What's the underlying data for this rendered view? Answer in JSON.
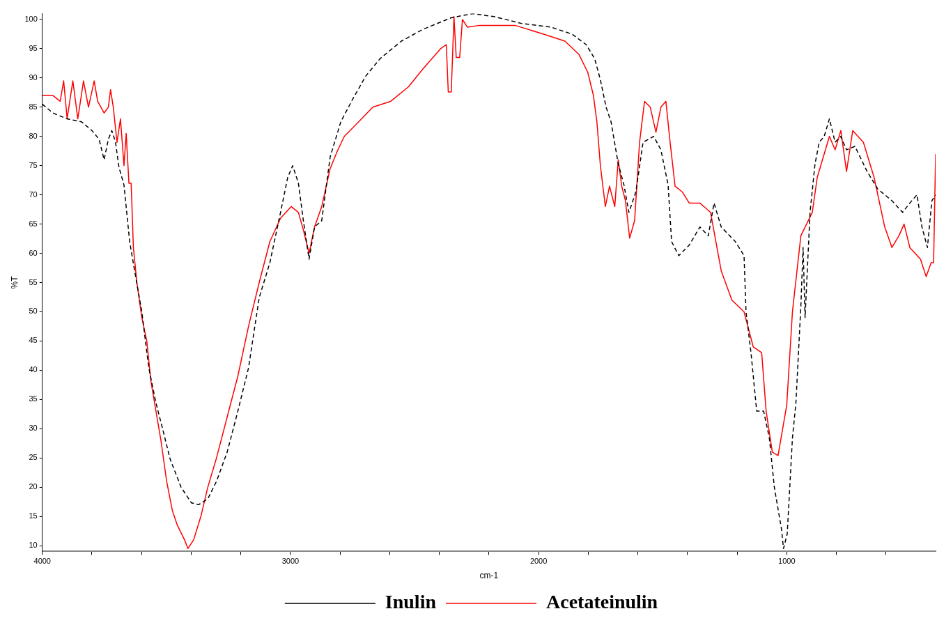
{
  "chart_data": {
    "type": "line",
    "xlabel": "cm-1",
    "ylabel": "%T",
    "xlim": [
      4000,
      400
    ],
    "ylim": [
      9,
      101
    ],
    "xticks": [
      4000,
      {
        "value": 3800,
        "label": null
      },
      {
        "value": 3600,
        "label": null
      },
      {
        "value": 3400,
        "label": null
      },
      {
        "value": 3200,
        "label": null
      },
      3000,
      {
        "value": 2800,
        "label": null
      },
      {
        "value": 2600,
        "label": null
      },
      {
        "value": 2400,
        "label": null
      },
      {
        "value": 2200,
        "label": null
      },
      2000,
      {
        "value": 1800,
        "label": null
      },
      {
        "value": 1600,
        "label": null
      },
      {
        "value": 1400,
        "label": null
      },
      {
        "value": 1200,
        "label": null
      },
      1000,
      {
        "value": 800,
        "label": null
      },
      {
        "value": 600,
        "label": null
      }
    ],
    "yticks": [
      10,
      15,
      20,
      25,
      30,
      35,
      40,
      45,
      50,
      55,
      60,
      65,
      70,
      75,
      80,
      85,
      90,
      95,
      100
    ],
    "grid": false,
    "legend": "bottom",
    "marker": "none",
    "series": [
      {
        "name": "Inulin",
        "color": "#000000",
        "line_style": "dashed",
        "x": [
          4000,
          3957,
          3900,
          3842,
          3800,
          3771,
          3751,
          3734,
          3720,
          3705,
          3691,
          3671,
          3648,
          3628,
          3599,
          3571,
          3542,
          3513,
          3485,
          3441,
          3399,
          3370,
          3333,
          3298,
          3255,
          3212,
          3169,
          3126,
          3083,
          3040,
          3011,
          2991,
          2968,
          2948,
          2925,
          2903,
          2874,
          2840,
          2797,
          2754,
          2697,
          2639,
          2553,
          2467,
          2352,
          2266,
          2180,
          2066,
          1951,
          1865,
          1808,
          1774,
          1751,
          1728,
          1708,
          1679,
          1656,
          1636,
          1608,
          1579,
          1536,
          1507,
          1478,
          1464,
          1435,
          1393,
          1350,
          1316,
          1293,
          1264,
          1207,
          1172,
          1164,
          1144,
          1121,
          1093,
          1070,
          1050,
          1021,
          1013,
          998,
          977,
          963,
          943,
          934,
          926,
          906,
          886,
          869,
          849,
          828,
          805,
          782,
          759,
          725,
          676,
          633,
          576,
          533,
          504,
          475,
          455,
          433,
          415,
          400
        ],
        "values": [
          85.5,
          84,
          83,
          82.5,
          81,
          79.5,
          76,
          79.5,
          81,
          79,
          74.7,
          71.7,
          62,
          57,
          50,
          40.4,
          34.4,
          29.6,
          24.8,
          20,
          17.3,
          17,
          18,
          21,
          26,
          33,
          40.4,
          52.4,
          58.4,
          67,
          73,
          75,
          72,
          65.6,
          59,
          64.5,
          65.6,
          76.5,
          82.5,
          86,
          90.3,
          93.3,
          96.3,
          98.3,
          100.3,
          101,
          100.5,
          99.3,
          98.7,
          97.5,
          95.7,
          93.3,
          89.7,
          85,
          82.5,
          75.3,
          71.7,
          67,
          70.5,
          79,
          80,
          77.7,
          71.7,
          62,
          59.6,
          61.4,
          64.5,
          63,
          68.6,
          64.5,
          62,
          59.6,
          50,
          43,
          33,
          33,
          28.4,
          20,
          12.8,
          9.5,
          12,
          28.4,
          34.4,
          51,
          61,
          49,
          67,
          75.3,
          79,
          80,
          83,
          79,
          80,
          77.7,
          78.3,
          74,
          71,
          69,
          67,
          68.6,
          70,
          64.5,
          61,
          69,
          70
        ]
      },
      {
        "name": "Acetateinulin",
        "color": "#ff0000",
        "line_style": "solid",
        "x": [
          4000,
          3957,
          3928,
          3914,
          3900,
          3877,
          3857,
          3834,
          3814,
          3791,
          3777,
          3751,
          3734,
          3725,
          3714,
          3699,
          3685,
          3671,
          3662,
          3651,
          3642,
          3633,
          3619,
          3599,
          3579,
          3562,
          3542,
          3522,
          3499,
          3476,
          3456,
          3427,
          3413,
          3390,
          3361,
          3333,
          3298,
          3255,
          3212,
          3169,
          3126,
          3083,
          3040,
          2997,
          2968,
          2948,
          2925,
          2903,
          2874,
          2840,
          2811,
          2783,
          2725,
          2668,
          2596,
          2524,
          2467,
          2395,
          2372,
          2364,
          2352,
          2341,
          2332,
          2318,
          2307,
          2287,
          2238,
          2095,
          1980,
          1894,
          1837,
          1802,
          1779,
          1765,
          1751,
          1731,
          1714,
          1693,
          1679,
          1665,
          1650,
          1633,
          1613,
          1593,
          1573,
          1550,
          1527,
          1507,
          1487,
          1470,
          1450,
          1421,
          1393,
          1350,
          1307,
          1264,
          1221,
          1172,
          1135,
          1101,
          1083,
          1058,
          1035,
          1000,
          977,
          943,
          897,
          877,
          828,
          805,
          782,
          759,
          734,
          691,
          648,
          605,
          576,
          548,
          527,
          504,
          461,
          438,
          418,
          408,
          400
        ],
        "values": [
          87,
          87,
          86,
          89.5,
          83,
          89.5,
          83,
          89.5,
          85,
          89.5,
          86,
          84,
          85,
          88,
          85,
          79,
          83,
          75,
          80.5,
          72,
          72,
          61,
          55,
          49,
          45,
          38,
          33,
          28,
          21,
          16,
          13.5,
          11,
          9.5,
          11,
          15,
          20,
          25,
          32,
          39,
          47.5,
          55,
          62,
          66,
          68,
          67,
          64,
          60,
          64.5,
          68,
          74.5,
          77.5,
          80,
          82.5,
          85,
          86,
          88.5,
          91.5,
          95,
          95.7,
          87.6,
          87.6,
          100.5,
          93.5,
          93.5,
          100,
          98.7,
          99,
          99,
          97.5,
          96.3,
          94,
          91,
          87,
          82.5,
          75,
          68,
          71.5,
          68,
          76,
          71.5,
          69,
          62.6,
          65.6,
          79,
          86,
          85,
          80.7,
          85,
          86,
          79,
          71.5,
          70.5,
          68.6,
          68.6,
          67,
          57,
          52,
          50,
          44,
          43,
          33,
          26,
          25.4,
          34,
          50,
          63,
          67,
          73,
          80,
          77.7,
          81,
          74,
          81,
          79,
          73,
          64.5,
          61,
          63,
          65,
          61,
          59,
          56,
          58.4,
          58.4,
          77
        ]
      }
    ]
  }
}
